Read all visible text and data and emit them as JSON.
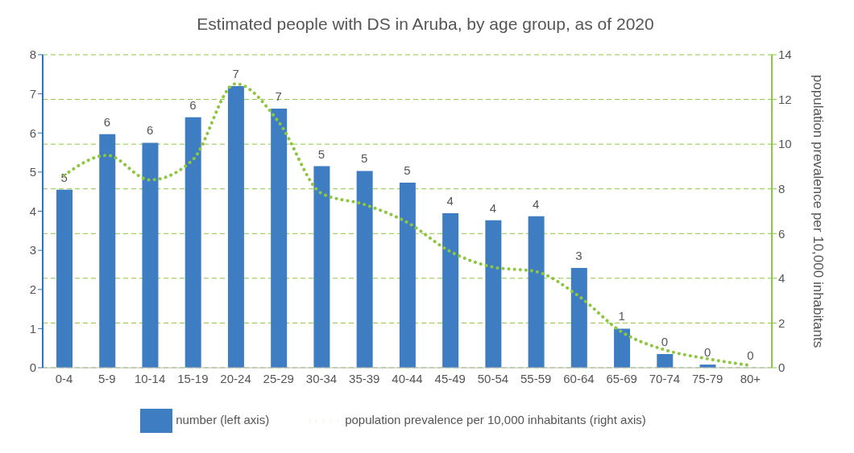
{
  "chart_data": {
    "type": "bar",
    "title": "Estimated people with DS in Aruba, by age group, as of 2020",
    "categories": [
      "0-4",
      "5-9",
      "10-14",
      "15-19",
      "20-24",
      "25-29",
      "30-34",
      "35-39",
      "40-44",
      "45-49",
      "50-54",
      "55-59",
      "60-64",
      "65-69",
      "70-74",
      "75-79",
      "80+"
    ],
    "series": [
      {
        "name": "number (left axis)",
        "color": "#3f7dc2",
        "values": [
          4.55,
          5.97,
          5.75,
          6.4,
          7.2,
          6.62,
          5.15,
          5.03,
          4.73,
          3.95,
          3.77,
          3.87,
          2.55,
          1.0,
          0.35,
          0.08,
          0
        ],
        "value_labels": [
          "5",
          "6",
          "6",
          "6",
          "7",
          "7",
          "5",
          "5",
          "5",
          "4",
          "4",
          "4",
          "3",
          "1",
          "0",
          "0",
          "0"
        ]
      },
      {
        "name": "population prevalence per 10,000 inhabitants (right axis)",
        "type": "line",
        "axis": "y2",
        "color": "#8dc63f",
        "line_style": "dotted",
        "values": [
          8.6,
          9.5,
          8.4,
          9.3,
          12.7,
          11.0,
          7.8,
          7.3,
          6.5,
          5.2,
          4.5,
          4.3,
          3.2,
          1.6,
          0.8,
          0.4,
          0.1
        ]
      }
    ],
    "ylim": [
      0,
      8
    ],
    "yticks": [
      0,
      1,
      2,
      3,
      4,
      5,
      6,
      7,
      8
    ],
    "y2lim": [
      0,
      14
    ],
    "y2ticks": [
      0,
      2,
      4,
      6,
      8,
      10,
      12,
      14
    ],
    "y2label": "population prevalence per 10,000 inhabitants",
    "grid": "y",
    "legend": "bottom",
    "marker": "none"
  }
}
